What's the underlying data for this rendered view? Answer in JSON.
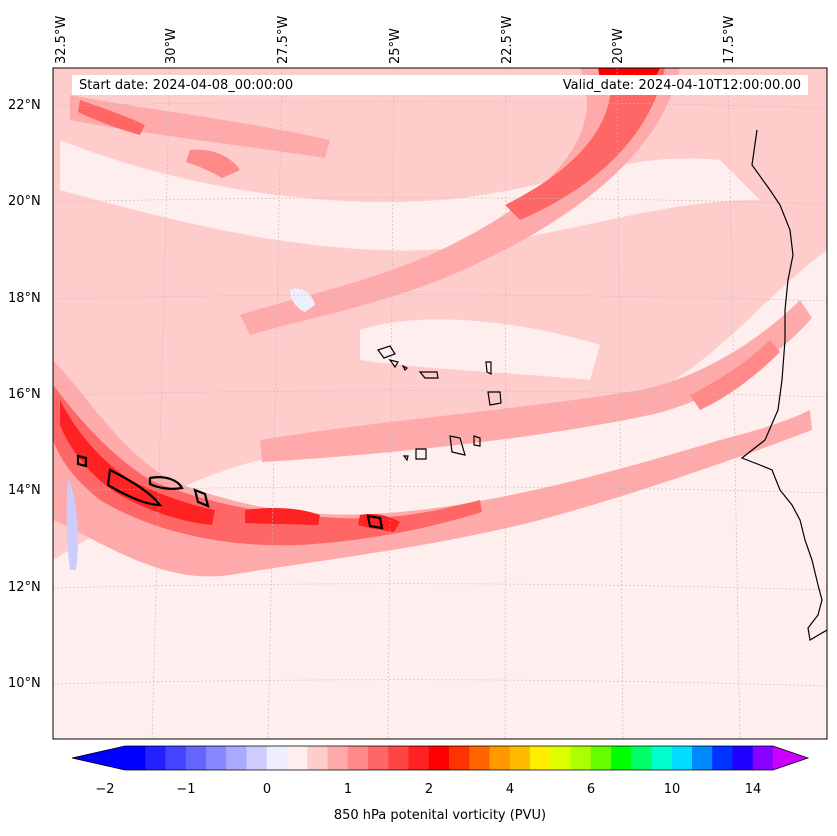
{
  "header": {
    "start_label": "Start date: 2024-04-08_00:00:00",
    "valid_label": "Valid_date: 2024-04-10T12:00:00.00"
  },
  "axes": {
    "lon_labels": [
      "32.5°W",
      "30°W",
      "27.5°W",
      "25°W",
      "22.5°W",
      "20°W",
      "17.5°W"
    ],
    "lat_labels": [
      "22°N",
      "20°N",
      "18°N",
      "16°N",
      "14°N",
      "12°N",
      "10°N"
    ]
  },
  "colorbar": {
    "label": "850 hPa potenital vorticity (PVU)",
    "ticks": [
      "−2",
      "−1",
      "0",
      "1",
      "2",
      "4",
      "6",
      "10",
      "14"
    ],
    "colors": [
      "#0000ff",
      "#2222ff",
      "#4444ff",
      "#6666ff",
      "#8888ff",
      "#aaaaff",
      "#ccccff",
      "#eeeeff",
      "#ffeeee",
      "#ffcccc",
      "#ffaaaa",
      "#ff8888",
      "#ff6666",
      "#ff4444",
      "#ff2222",
      "#ff0000",
      "#ff3300",
      "#ff6600",
      "#ff9900",
      "#ffbb00",
      "#ffee00",
      "#ddff00",
      "#aaff00",
      "#66ff00",
      "#00ff00",
      "#00ff66",
      "#00ffcc",
      "#00ddff",
      "#0088ff",
      "#0033ff",
      "#2200ff",
      "#8800ff"
    ],
    "extend_low_color": "#0000ff",
    "extend_high_color": "#cc00ff"
  },
  "map_colors": {
    "background": "#ffeeee",
    "low": "#ffcccc",
    "mid": "#ffaaaa",
    "high": "#ff6666",
    "peak": "#ff2222",
    "negative": "#ccccff",
    "coast": "#000000"
  }
}
